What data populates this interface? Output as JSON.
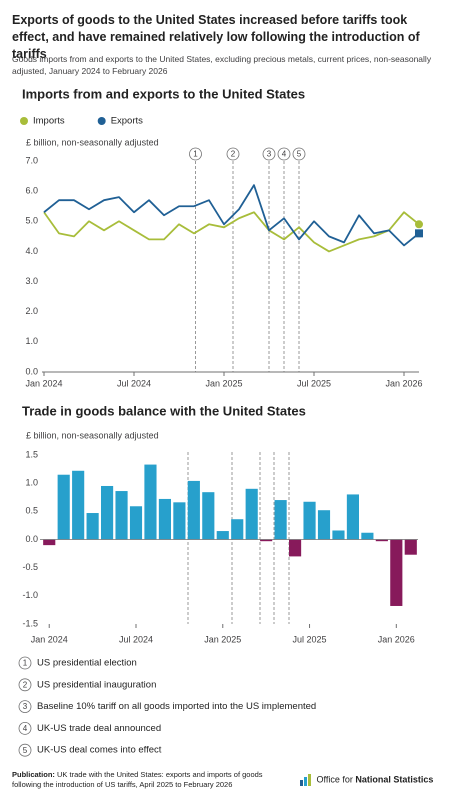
{
  "title": "Exports of goods to the United States increased before tariffs took effect, and have remained relatively low following the introduction of tariffs",
  "subtitle": "Goods imports from and exports to the United States, excluding precious metals, current prices, non-seasonally adjusted, January 2024 to February 2026",
  "chart_data": [
    {
      "type": "line",
      "title": "Imports from and exports to the United States",
      "y_label": "£ billion, non-seasonally adjusted",
      "categories": [
        "Jan 2024",
        null,
        null,
        null,
        null,
        null,
        "Jul 2024",
        null,
        null,
        null,
        null,
        null,
        "Jan 2025",
        null,
        null,
        null,
        null,
        null,
        "Jul 2025",
        null,
        null,
        null,
        null,
        null,
        "Jan 2026",
        null
      ],
      "series": [
        {
          "name": "Imports",
          "color": "#a8bd3a",
          "end_marker": "circle",
          "values": [
            5.3,
            4.6,
            4.5,
            5.0,
            4.7,
            5.0,
            4.7,
            4.4,
            4.4,
            4.9,
            4.6,
            4.9,
            4.8,
            5.1,
            5.3,
            4.7,
            4.4,
            4.8,
            4.3,
            4.0,
            4.2,
            4.4,
            4.5,
            4.7,
            5.3,
            4.9
          ]
        },
        {
          "name": "Exports",
          "color": "#206095",
          "end_marker": "square",
          "values": [
            5.3,
            5.7,
            5.7,
            5.4,
            5.7,
            5.8,
            5.3,
            5.7,
            5.2,
            5.5,
            5.5,
            5.7,
            4.9,
            5.4,
            6.2,
            4.7,
            5.1,
            4.4,
            5.0,
            4.5,
            4.3,
            5.2,
            4.6,
            4.7,
            4.2,
            4.6
          ]
        }
      ],
      "ylim": [
        0,
        7
      ],
      "yticks": [
        {
          "value": 0,
          "label": "0.0"
        },
        {
          "value": 1,
          "label": "1.0"
        },
        {
          "value": 2,
          "label": "2.0"
        },
        {
          "value": 3,
          "label": "3.0"
        },
        {
          "value": 4,
          "label": "4.0"
        },
        {
          "value": 5,
          "label": "5.0"
        },
        {
          "value": 6,
          "label": "6.0"
        },
        {
          "value": 7,
          "label": "7.0"
        }
      ],
      "grid": false
    },
    {
      "type": "bar",
      "title": "Trade in goods balance with the United States",
      "y_label": "£ billion, non-seasonally adjusted",
      "categories": [
        "Jan 2024",
        null,
        null,
        null,
        null,
        null,
        "Jul 2024",
        null,
        null,
        null,
        null,
        null,
        "Jan 2025",
        null,
        null,
        null,
        null,
        null,
        "Jul 2025",
        null,
        null,
        null,
        null,
        null,
        "Jan 2026",
        null
      ],
      "color": "#27a0cc",
      "negative_color": "#871a5b",
      "values": [
        -0.1,
        1.15,
        1.22,
        0.47,
        0.95,
        0.86,
        0.59,
        1.33,
        0.72,
        0.66,
        1.04,
        0.84,
        0.15,
        0.36,
        0.9,
        -0.03,
        0.7,
        -0.3,
        0.67,
        0.52,
        0.16,
        0.8,
        0.12,
        -0.03,
        -1.18,
        -0.27
      ],
      "ylim": [
        -1.5,
        1.5
      ],
      "yticks": [
        1.5,
        {
          "value": 1,
          "label": "1.0"
        },
        0.5,
        {
          "value": 0,
          "label": "0.0"
        },
        -0.5,
        {
          "value": -1,
          "label": "-1.0"
        },
        -1.5
      ],
      "grid": false
    }
  ],
  "notes": [
    {
      "number": "1",
      "text": "US presidential election"
    },
    {
      "number": "2",
      "text": "US presidential inauguration"
    },
    {
      "number": "3",
      "text": "Baseline 10% tariff on all goods imported into the US implemented"
    },
    {
      "number": "4",
      "text": "UK-US trade deal announced"
    },
    {
      "number": "5",
      "text": "UK-US deal comes into effect"
    }
  ],
  "footer": {
    "label": "Publication:",
    "text": "UK trade with the United States: exports and imports of goods following the introduction of US tariffs, April 2025 to February 2026"
  },
  "logo": {
    "regular": "Office for",
    "bold": "National Statistics"
  }
}
